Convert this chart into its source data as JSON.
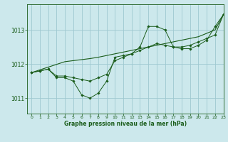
{
  "bg_color": "#cce8ec",
  "grid_color": "#9ec8d0",
  "line_color": "#1a5c1a",
  "marker_color": "#1a5c1a",
  "title": "Graphe pression niveau de la mer (hPa)",
  "xlim": [
    -0.5,
    23
  ],
  "ylim": [
    1010.55,
    1013.75
  ],
  "yticks": [
    1011,
    1012,
    1013
  ],
  "xticks": [
    0,
    1,
    2,
    3,
    4,
    5,
    6,
    7,
    8,
    9,
    10,
    11,
    12,
    13,
    14,
    15,
    16,
    17,
    18,
    19,
    20,
    21,
    22,
    23
  ],
  "series_wavy": [
    1011.75,
    1011.8,
    1011.85,
    1011.6,
    1011.6,
    1011.5,
    1011.1,
    1011.0,
    1011.15,
    1011.5,
    1012.2,
    1012.25,
    1012.3,
    1012.5,
    1013.1,
    1013.1,
    1013.0,
    1012.5,
    1012.45,
    1012.45,
    1012.55,
    1012.7,
    1013.1,
    1013.45
  ],
  "series_smooth": [
    1011.75,
    1011.8,
    1011.85,
    1011.65,
    1011.65,
    1011.6,
    1011.55,
    1011.5,
    1011.6,
    1011.7,
    1012.1,
    1012.2,
    1012.3,
    1012.4,
    1012.5,
    1012.6,
    1012.55,
    1012.5,
    1012.5,
    1012.55,
    1012.65,
    1012.75,
    1012.85,
    1013.45
  ],
  "series_trend": [
    1011.75,
    1011.83,
    1011.91,
    1011.99,
    1012.07,
    1012.1,
    1012.13,
    1012.16,
    1012.2,
    1012.25,
    1012.3,
    1012.35,
    1012.4,
    1012.45,
    1012.5,
    1012.55,
    1012.6,
    1012.65,
    1012.7,
    1012.75,
    1012.8,
    1012.9,
    1013.0,
    1013.45
  ]
}
